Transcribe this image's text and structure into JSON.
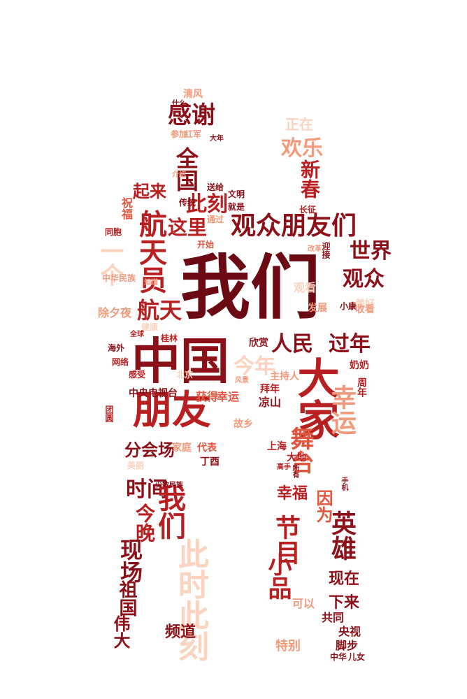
{
  "palette": {
    "deep": "#6b0a12",
    "dark": "#8c1018",
    "red": "#b81f21",
    "mid": "#e0573f",
    "light": "#f29a7c",
    "pale": "#fbd3bf"
  },
  "words": [
    "我们",
    "中国",
    "大家",
    "朋友",
    "观众朋友们",
    "航天员",
    "感谢",
    "全国",
    "新春",
    "欢乐",
    "此刻",
    "一个",
    "世界",
    "观众",
    "过年",
    "人民",
    "航天",
    "今年",
    "幸运",
    "舞台",
    "起来",
    "这里",
    "时间",
    "分会场",
    "今晚",
    "我们",
    "此时此刻",
    "祖国",
    "现场",
    "伟大",
    "节目",
    "小品",
    "英雄",
    "因为",
    "现在",
    "下来",
    "幸福",
    "共同",
    "央视",
    "脚步",
    "频道",
    "中央电视台",
    "获得",
    "幸运",
    "凉山",
    "拜年",
    "上海",
    "丁酉",
    "代表",
    "家庭",
    "正在",
    "清风",
    "红军",
    "参加",
    "送给",
    "传统",
    "文明",
    "就是",
    "通过",
    "开始",
    "同胞",
    "祝福",
    "海外",
    "网络",
    "感受",
    "北京",
    "桂林",
    "健康",
    "全球",
    "欣赏",
    "风景",
    "奶奶",
    "周年",
    "长征",
    "迎接",
    "改革",
    "发展",
    "小康",
    "美好",
    "收看",
    "中华",
    "儿女",
    "特别",
    "可以",
    "少数民族",
    "美丽",
    "大地",
    "所有",
    "高手",
    "手机",
    "什么",
    "大年",
    "介绍",
    "知道",
    "中华民族",
    "除夕夜",
    "观看",
    "主持人",
    "故乡",
    "团圆"
  ]
}
